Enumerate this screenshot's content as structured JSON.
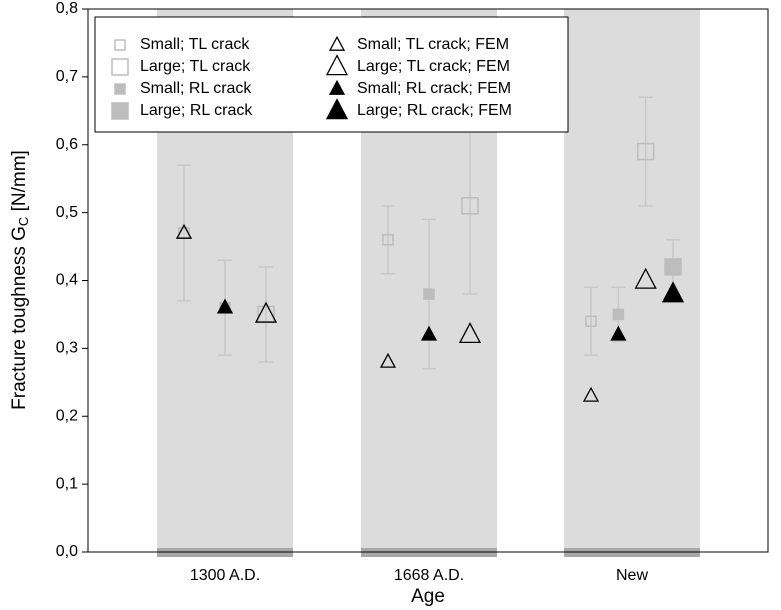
{
  "chart_data": {
    "type": "scatter",
    "xlabel": "Age",
    "ylabel": [
      "Fracture toughness G",
      "C",
      " [N/mm]"
    ],
    "categories": [
      "1300 A.D.",
      "1668 A.D.",
      "New"
    ],
    "ylim": [
      0,
      0.8
    ],
    "yticks": [
      {
        "value": 0,
        "label": "0,0"
      },
      {
        "value": 0.1,
        "label": "0,1"
      },
      {
        "value": 0.2,
        "label": "0,2"
      },
      {
        "value": 0.3,
        "label": "0,3"
      },
      {
        "value": 0.4,
        "label": "0,4"
      },
      {
        "value": 0.5,
        "label": "0,5"
      },
      {
        "value": 0.6,
        "label": "0,6"
      },
      {
        "value": 0.7,
        "label": "0,7"
      },
      {
        "value": 0.8,
        "label": "0,8"
      }
    ],
    "series": [
      {
        "name": "Small; TL crack",
        "color": "#bdbdbd",
        "values": [
          0.47,
          0.46,
          0.34
        ],
        "errors": [
          0.1,
          0.05,
          0.05
        ]
      },
      {
        "name": "Large; TL crack",
        "color": "#bdbdbd",
        "values": [
          0.35,
          0.51,
          0.59
        ],
        "errors": [
          0.07,
          0.13,
          0.08
        ]
      },
      {
        "name": "Small; RL crack",
        "color": "#bdbdbd",
        "values": [
          0.36,
          0.38,
          0.35
        ],
        "errors": [
          0.07,
          0.11,
          0.04
        ]
      },
      {
        "name": "Large; RL crack",
        "color": "#bdbdbd",
        "values": [
          null,
          null,
          0.42
        ],
        "errors": [
          null,
          null,
          0.04
        ]
      },
      {
        "name": "Small; TL crack; FEM",
        "color": "#000000",
        "values": [
          0.47,
          0.28,
          0.23
        ]
      },
      {
        "name": "Large; TL crack; FEM",
        "color": "#000000",
        "values": [
          0.35,
          0.32,
          0.4
        ]
      },
      {
        "name": "Small; RL crack; FEM",
        "color": "#000000",
        "values": [
          0.36,
          0.32,
          0.32
        ]
      },
      {
        "name": "Large; RL crack; FEM",
        "color": "#000000",
        "values": [
          null,
          null,
          0.38
        ]
      }
    ]
  }
}
